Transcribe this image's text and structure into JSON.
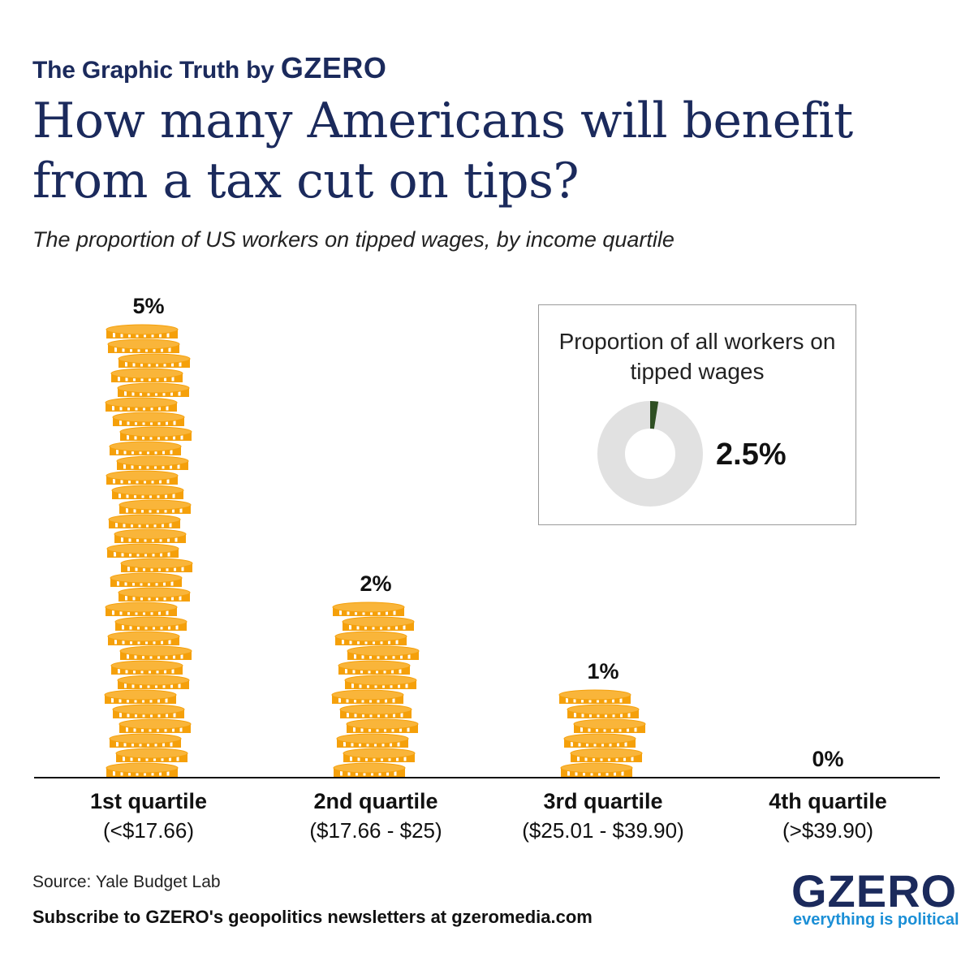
{
  "header": {
    "kicker": "The Graphic Truth by",
    "kicker_brand": "GZERO",
    "title": "How many Americans will benefit from a tax cut on tips?",
    "subtitle": "The proportion of US workers on tipped wages, by income quartile"
  },
  "chart_data": {
    "type": "bar",
    "title": "How many Americans will benefit from a tax cut on tips?",
    "subtitle": "The proportion of US workers on tipped wages, by income quartile",
    "categories": [
      "1st quartile",
      "2nd quartile",
      "3rd quartile",
      "4th quartile"
    ],
    "category_subtitles": [
      "(<$17.66)",
      "($17.66 - $25)",
      "($25.01 - $39.90)",
      "(>$39.90)"
    ],
    "values": [
      5,
      2,
      1,
      0
    ],
    "value_labels": [
      "5%",
      "2%",
      "1%",
      "0%"
    ],
    "unit": "%",
    "ylim": [
      0,
      5
    ],
    "grid": false,
    "legend": "none",
    "bar_style": "stacked coins",
    "colors": {
      "coin": "#f5a00a",
      "coin_light": "#f9b53a",
      "coin_mark": "#ffffff",
      "axis": "#111111"
    },
    "inset": {
      "type": "pie",
      "title": "Proportion of all workers on tipped wages",
      "value": 2.5,
      "value_label": "2.5%",
      "colors": {
        "slice": "#2e4f23",
        "rest": "#e1e1e1"
      }
    }
  },
  "footer": {
    "source": "Source: Yale Budget Lab",
    "subscribe": "Subscribe to GZERO's geopolitics newsletters at gzeromedia.com",
    "logo": "GZERO",
    "tagline": "everything is political"
  },
  "icons": {
    "coin": "coin-icon"
  }
}
